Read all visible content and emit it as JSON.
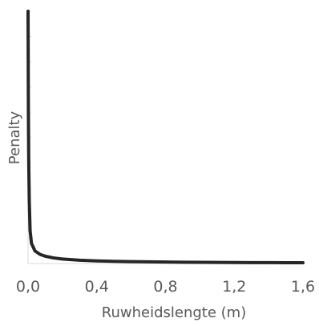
{
  "chart_data": {
    "type": "line",
    "title": "",
    "xlabel": "Ruwheidslengte (m)",
    "ylabel": "Penalty",
    "xlim": [
      0,
      1.6
    ],
    "ylim": [
      0,
      100
    ],
    "x_ticks": [
      0.0,
      0.4,
      0.8,
      1.2,
      1.6
    ],
    "x_tick_labels": [
      "0,0",
      "0,4",
      "0,8",
      "1,2",
      "1,6"
    ],
    "y_tick_labels_shown": false,
    "grid": false,
    "legend": "none",
    "series": [
      {
        "color": "#262626",
        "points": [
          [
            0.0,
            100
          ],
          [
            0.001,
            80
          ],
          [
            0.002,
            60
          ],
          [
            0.004,
            40
          ],
          [
            0.007,
            25
          ],
          [
            0.012,
            13
          ],
          [
            0.02,
            8
          ],
          [
            0.04,
            5
          ],
          [
            0.07,
            3.6
          ],
          [
            0.1,
            2.9
          ],
          [
            0.15,
            2.2
          ],
          [
            0.2,
            1.8
          ],
          [
            0.3,
            1.3
          ],
          [
            0.4,
            1.05
          ],
          [
            0.5,
            0.88
          ],
          [
            0.6,
            0.75
          ],
          [
            0.7,
            0.66
          ],
          [
            0.8,
            0.58
          ],
          [
            0.9,
            0.52
          ],
          [
            1.0,
            0.47
          ],
          [
            1.1,
            0.43
          ],
          [
            1.2,
            0.4
          ],
          [
            1.3,
            0.37
          ],
          [
            1.4,
            0.34
          ],
          [
            1.5,
            0.32
          ],
          [
            1.6,
            0.3
          ]
        ]
      }
    ],
    "colors": {
      "line": "#262626",
      "axis": "#d9d9d9",
      "text": "#595959"
    }
  }
}
